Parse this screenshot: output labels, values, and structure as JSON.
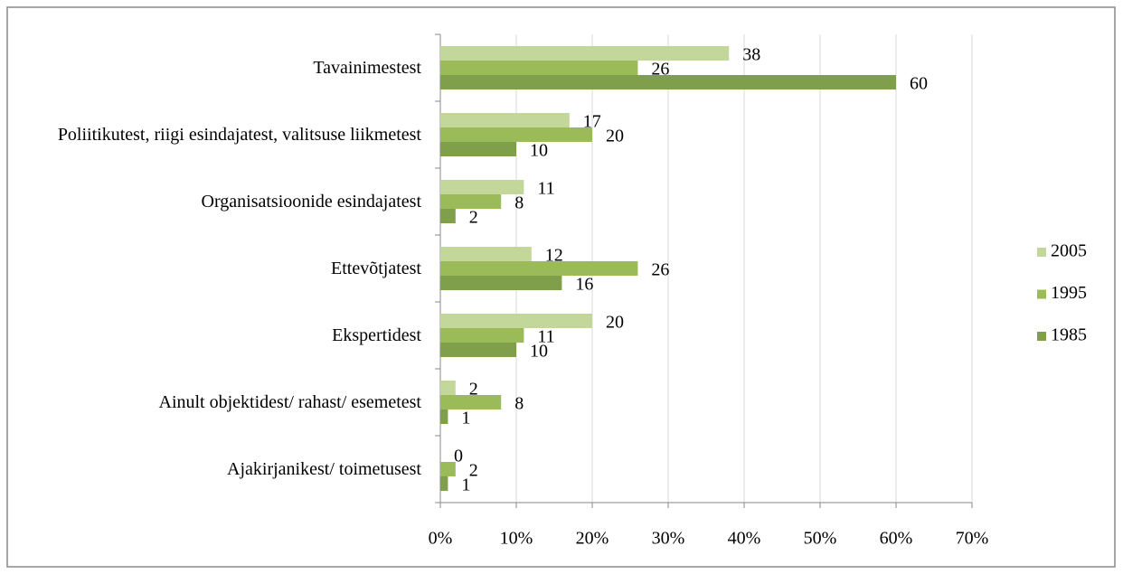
{
  "chart_data": {
    "type": "barh",
    "categories": [
      "Tavainimestest",
      "Poliitikutest, riigi esindajatest, valitsuse liikmetest",
      "Organisatsioonide esindajatest",
      "Ettevõtjatest",
      "Ekspertidest",
      "Ainult objektidest/ rahast/ esemetest",
      "Ajakirjanikest/ toimetusest"
    ],
    "series": [
      {
        "name": "2005",
        "color": "#c4d79b",
        "values": [
          38,
          17,
          11,
          12,
          20,
          2,
          0
        ]
      },
      {
        "name": "1995",
        "color": "#9bbb59",
        "values": [
          26,
          20,
          8,
          26,
          11,
          8,
          2
        ]
      },
      {
        "name": "1985",
        "color": "#7f9f4a",
        "values": [
          60,
          10,
          2,
          16,
          10,
          1,
          1
        ]
      }
    ],
    "xlim": [
      0,
      70
    ],
    "xticks": [
      {
        "value": 0,
        "label": "0%"
      },
      {
        "value": 10,
        "label": "10%"
      },
      {
        "value": 20,
        "label": "20%"
      },
      {
        "value": 30,
        "label": "30%"
      },
      {
        "value": 40,
        "label": "40%"
      },
      {
        "value": 50,
        "label": "50%"
      },
      {
        "value": 60,
        "label": "60%"
      },
      {
        "value": 70,
        "label": "70%"
      }
    ],
    "grid": true,
    "legend": "right"
  }
}
